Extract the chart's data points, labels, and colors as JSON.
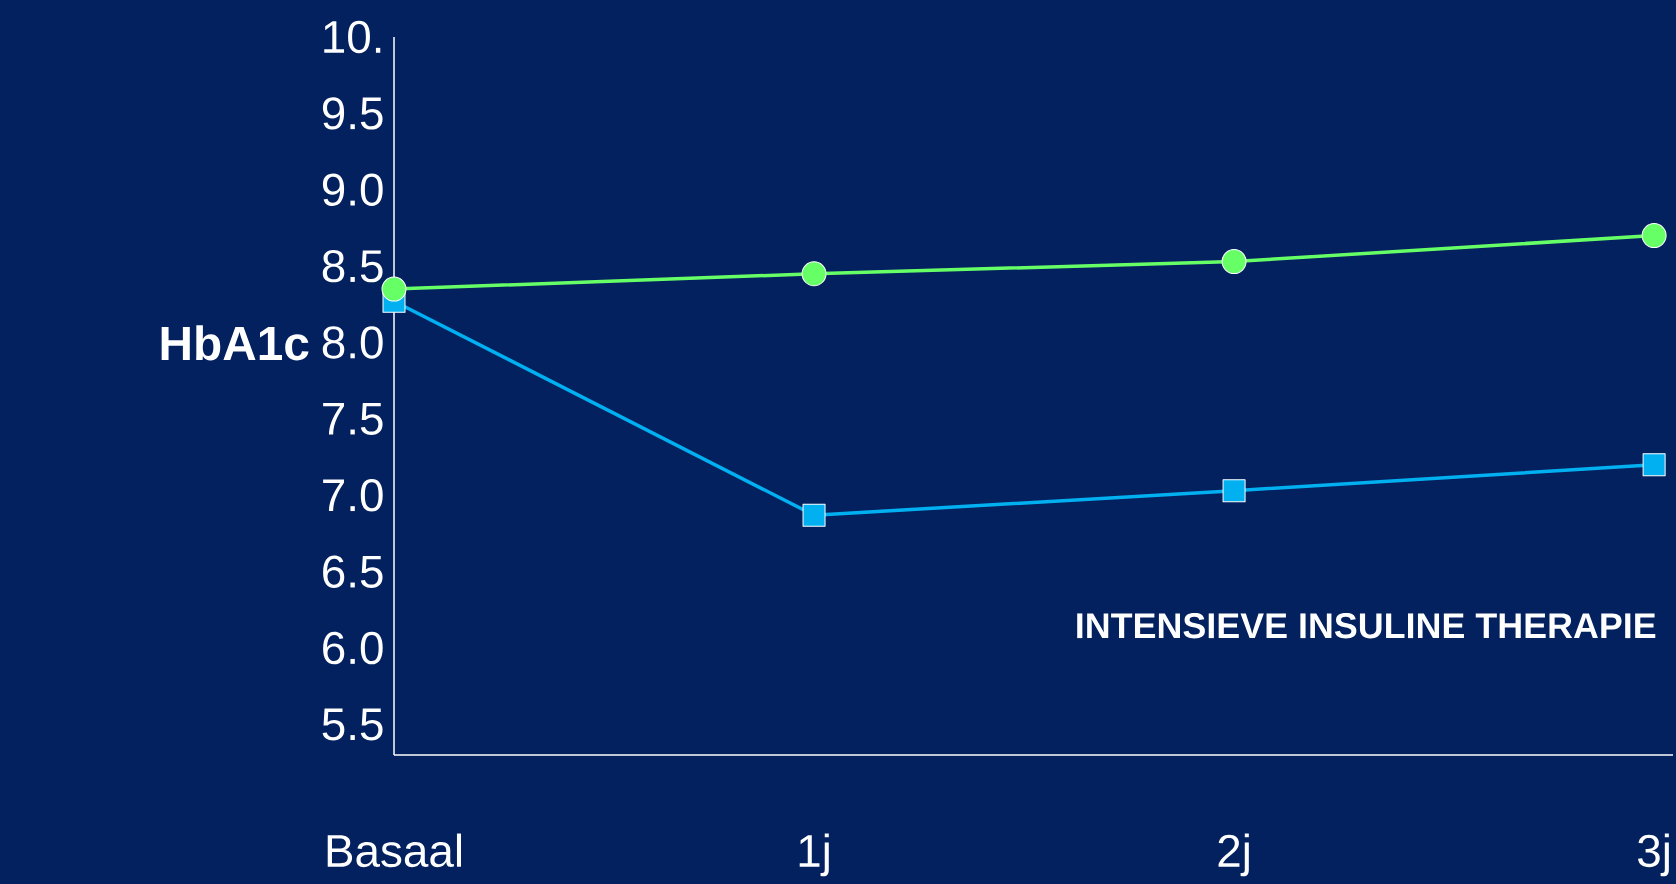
{
  "chart_data": {
    "type": "line",
    "ylabel": "HbA1c",
    "categories": [
      "Basaal",
      "1j",
      "2j",
      "3j"
    ],
    "series": [
      {
        "color": "#66ff66",
        "marker": "circle",
        "values": [
          8.35,
          8.45,
          8.53,
          8.7
        ]
      },
      {
        "color": "#00b0f0",
        "marker": "square",
        "values": [
          8.27,
          6.87,
          7.03,
          7.2
        ]
      }
    ],
    "ylim": [
      5.3,
      10
    ],
    "yticks": [
      5.5,
      {
        "value": 6,
        "label": "6.0"
      },
      6.5,
      {
        "value": 7,
        "label": "7.0"
      },
      7.5,
      {
        "value": 8,
        "label": "8.0"
      },
      8.5,
      {
        "value": 9,
        "label": "9.0"
      },
      9.5,
      {
        "value": 10,
        "label": "10."
      }
    ],
    "annotations": [
      "INTENSIEVE INSULINE THERAPIE"
    ]
  }
}
